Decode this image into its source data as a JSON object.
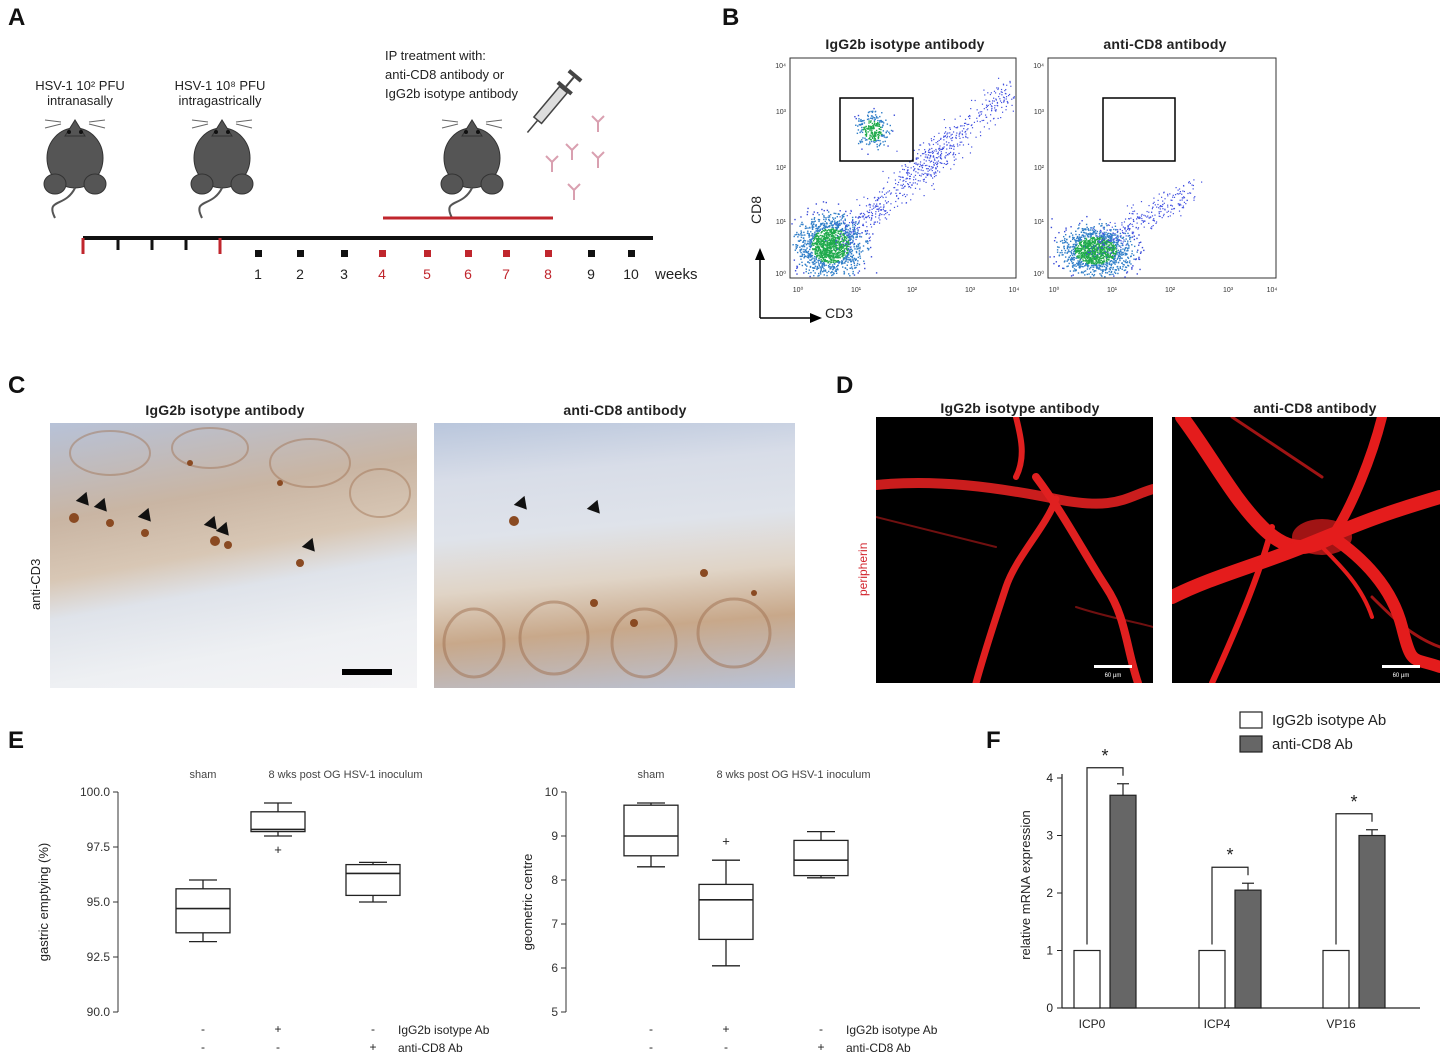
{
  "panels": {
    "A": {
      "label": "A",
      "text1": "HSV-1 10² PFU",
      "text1b": "intranasally",
      "text2": "HSV-1 10⁸ PFU",
      "text2b": "intragastrically",
      "text3": "IP treatment  with:",
      "text3b": "anti-CD8 antibody or",
      "text3c": "IgG2b isotype antibody",
      "weeks": [
        "1",
        "2",
        "3",
        "4",
        "5",
        "6",
        "7",
        "8",
        "9",
        "10"
      ],
      "red_weeks": [
        "4",
        "5",
        "6",
        "7",
        "8"
      ],
      "weeks_label": "weeks"
    },
    "B": {
      "label": "B",
      "left_title": "IgG2b isotype antibody",
      "right_title": "anti-CD8 antibody",
      "yaxis": "CD8",
      "xaxis": "CD3",
      "ticks_y": [
        "10⁴",
        "10³",
        "10²",
        "10¹",
        "10⁰"
      ],
      "ticks_x": [
        "10⁰",
        "10¹",
        "10²",
        "10³",
        "10⁴"
      ]
    },
    "C": {
      "label": "C",
      "left_title": "IgG2b isotype antibody",
      "right_title": "anti-CD8 antibody",
      "side_label": "anti-CD3"
    },
    "D": {
      "label": "D",
      "left_title": "IgG2b isotype antibody",
      "right_title": "anti-CD8 antibody",
      "side_label": "peripherin",
      "scale_text": "60 µm"
    },
    "E": {
      "label": "E",
      "left": {
        "ylabel": "gastric emptying (%)",
        "header_sham": "sham",
        "header_post": "8 wks post OG HSV-1 inoculum",
        "yticks": [
          "100.0",
          "97.5",
          "95.0",
          "92.5",
          "90.0"
        ]
      },
      "right": {
        "ylabel": "geometric centre",
        "header_sham": "sham",
        "header_post": "8 wks post OG HSV-1 inoculum",
        "yticks": [
          "10",
          "9",
          "8",
          "7",
          "6",
          "5"
        ]
      },
      "row1_label": "IgG2b  isotype  Ab",
      "row2_label": "anti-CD8 Ab",
      "row1_signs": [
        "-",
        "+",
        "-"
      ],
      "row2_signs": [
        "-",
        "-",
        "+"
      ]
    },
    "F": {
      "label": "F",
      "ylabel": "relative mRNA expression",
      "star": "*"
    }
  },
  "chart_data": [
    {
      "type": "box",
      "panel": "E-left",
      "ylabel": "gastric emptying (%)",
      "ylim": [
        90.0,
        100.0
      ],
      "categories": [
        "sham",
        "IgG2b isotype Ab",
        "anti-CD8 Ab"
      ],
      "boxes": [
        {
          "min": 93.2,
          "q1": 93.6,
          "median": 94.7,
          "q3": 95.6,
          "max": 96.0
        },
        {
          "min": 98.0,
          "q1": 98.2,
          "median": 98.3,
          "q3": 99.1,
          "max": 99.5,
          "outliers": [
            97.4
          ]
        },
        {
          "min": 95.0,
          "q1": 95.3,
          "median": 96.3,
          "q3": 96.7,
          "max": 96.8
        }
      ]
    },
    {
      "type": "box",
      "panel": "E-right",
      "ylabel": "geometric centre",
      "ylim": [
        5,
        10
      ],
      "categories": [
        "sham",
        "IgG2b isotype Ab",
        "anti-CD8 Ab"
      ],
      "boxes": [
        {
          "min": 8.3,
          "q1": 8.55,
          "median": 9.0,
          "q3": 9.7,
          "max": 9.75
        },
        {
          "min": 6.05,
          "q1": 6.65,
          "median": 7.55,
          "q3": 7.9,
          "max": 8.45,
          "outliers": [
            8.9
          ]
        },
        {
          "min": 8.05,
          "q1": 8.1,
          "median": 8.45,
          "q3": 8.9,
          "max": 9.1
        }
      ]
    },
    {
      "type": "bar",
      "panel": "F",
      "ylabel": "relative mRNA expression",
      "ylim": [
        0,
        4
      ],
      "categories": [
        "ICP0",
        "ICP4",
        "VP16"
      ],
      "series": [
        {
          "name": "IgG2b isotype Ab",
          "values": [
            1,
            1,
            1
          ],
          "errors": [
            0,
            0,
            0
          ],
          "color": "#ffffff"
        },
        {
          "name": "anti-CD8 Ab",
          "values": [
            3.7,
            2.05,
            3.0
          ],
          "errors": [
            0.2,
            0.12,
            0.1
          ],
          "color": "#666666"
        }
      ],
      "significance": [
        "*",
        "*",
        "*"
      ]
    }
  ]
}
